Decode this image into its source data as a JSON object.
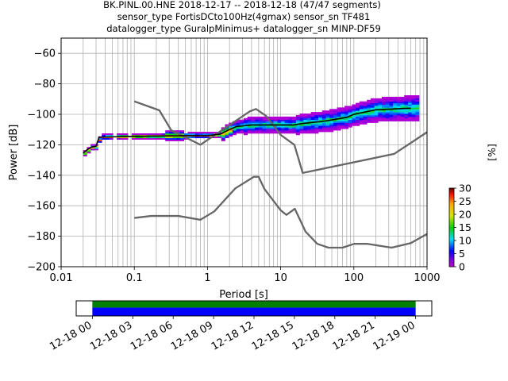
{
  "chart_data": {
    "type": "ppsd",
    "title_lines": [
      "BK.PINL.00.HNE   2018-12-17 -- 2018-12-18  (47/47 segments)",
      "sensor_type FortisDCto100Hz(4gmax) sensor_sn TF481",
      "datalogger_type GuralpMinimus+ datalogger_sn MINP-DF59"
    ],
    "xlabel": "Period [s]",
    "ylabel": "Power [dB]",
    "xscale": "log",
    "xlim": [
      0.01,
      1000
    ],
    "ylim": [
      -200,
      -50
    ],
    "x_ticks": [
      {
        "value": 0.01,
        "label": "0.01"
      },
      {
        "value": 0.1,
        "label": "0.1"
      },
      {
        "value": 1,
        "label": "1"
      },
      {
        "value": 10,
        "label": "10"
      },
      {
        "value": 100,
        "label": "100"
      },
      {
        "value": 1000,
        "label": "1000"
      }
    ],
    "y_ticks": [
      -60,
      -80,
      -100,
      -120,
      -140,
      -160,
      -180,
      -200
    ],
    "grid": true,
    "noise_models": [
      {
        "points": [
          [
            0.1,
            -91.5
          ],
          [
            0.22,
            -97.4
          ],
          [
            0.32,
            -110.5
          ],
          [
            0.8,
            -120
          ],
          [
            3.8,
            -98
          ],
          [
            4.6,
            -96.5
          ],
          [
            6.3,
            -101
          ],
          [
            10,
            -113.5
          ],
          [
            15.4,
            -120
          ],
          [
            20,
            -138.5
          ],
          [
            354.8,
            -126
          ],
          [
            10000,
            -80
          ]
        ]
      },
      {
        "points": [
          [
            0.1,
            -168
          ],
          [
            0.17,
            -166.7
          ],
          [
            0.4,
            -166.7
          ],
          [
            0.8,
            -169.2
          ],
          [
            1.24,
            -163.7
          ],
          [
            2.4,
            -148.6
          ],
          [
            4.3,
            -141
          ],
          [
            5,
            -141
          ],
          [
            6,
            -149
          ],
          [
            10,
            -163
          ],
          [
            12,
            -166
          ],
          [
            15.6,
            -162
          ],
          [
            21.9,
            -177
          ],
          [
            31.6,
            -185
          ],
          [
            45,
            -187.5
          ],
          [
            70,
            -187.5
          ],
          [
            101,
            -185
          ],
          [
            154,
            -185
          ],
          [
            328,
            -187.5
          ],
          [
            600,
            -184.5
          ],
          [
            1000,
            -178.5
          ]
        ]
      }
    ],
    "mean_curve": [
      [
        0.02,
        -125.5
      ],
      [
        0.023,
        -123
      ],
      [
        0.026,
        -121.5
      ],
      [
        0.03,
        -121
      ],
      [
        0.033,
        -115
      ],
      [
        0.1,
        -114.5
      ],
      [
        0.5,
        -114
      ],
      [
        1,
        -114
      ],
      [
        1.5,
        -113
      ],
      [
        2,
        -110
      ],
      [
        2.5,
        -108
      ],
      [
        4,
        -107
      ],
      [
        8,
        -107
      ],
      [
        10,
        -107
      ],
      [
        15,
        -107
      ],
      [
        20,
        -106
      ],
      [
        40,
        -104.5
      ],
      [
        80,
        -102
      ],
      [
        100,
        -100
      ],
      [
        200,
        -97
      ],
      [
        600,
        -96
      ]
    ],
    "colorbar": {
      "label": "[%]",
      "ticks": [
        0,
        5,
        10,
        15,
        20,
        25,
        30
      ],
      "range": [
        0,
        30
      ],
      "colormap": "pqlx"
    },
    "coverage": {
      "time_ticks": [
        "12-18 00",
        "12-18 03",
        "12-18 06",
        "12-18 09",
        "12-18 12",
        "12-18 15",
        "12-18 18",
        "12-18 21",
        "12-19 00"
      ],
      "data_range_hours": [
        0,
        24
      ],
      "axis_range_hours": [
        -1.2,
        25.2
      ],
      "colors": {
        "used": "#008000",
        "available": "#0000ff"
      }
    }
  }
}
